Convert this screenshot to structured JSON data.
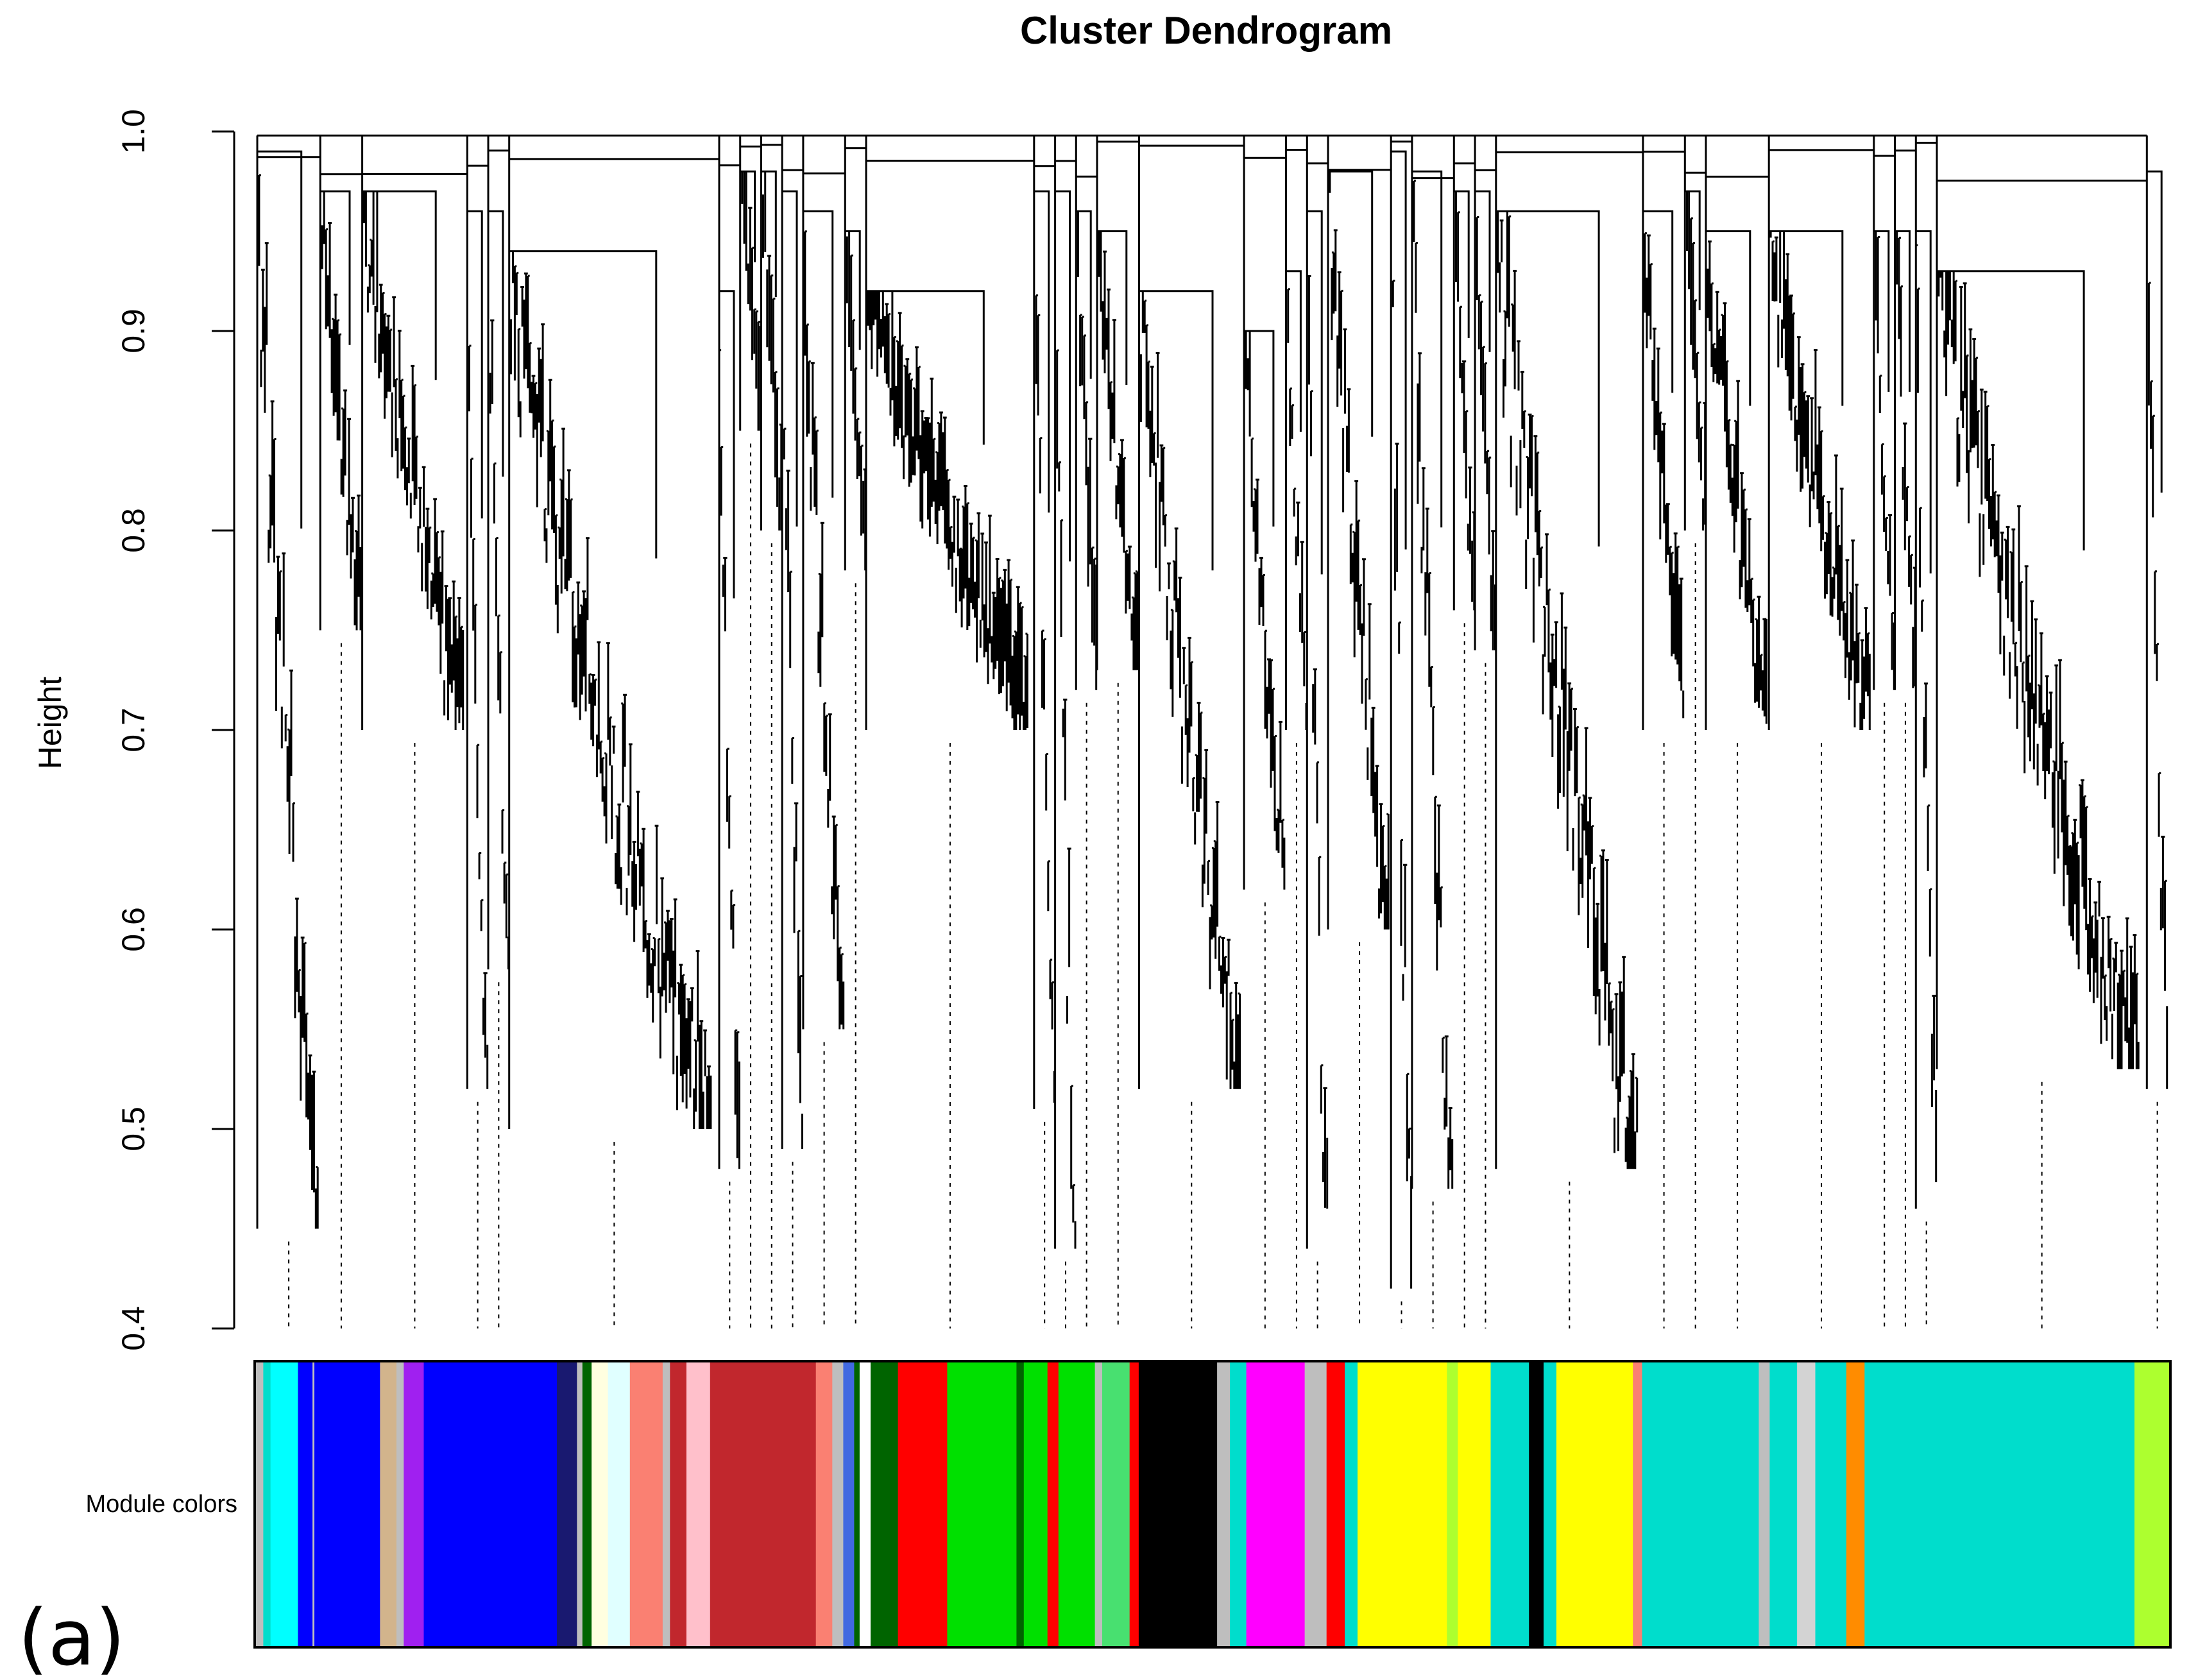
{
  "panel_label": "(a)",
  "chart_data": {
    "type": "dendrogram",
    "title": "Cluster Dendrogram",
    "xlabel": "",
    "ylabel": "Height",
    "ylim": [
      0.4,
      1.0
    ],
    "yticks": [
      "0.4",
      "0.5",
      "0.6",
      "0.7",
      "0.8",
      "0.9",
      "1.0"
    ],
    "grid": false,
    "module_colors_label": "Module colors",
    "branches": [
      {
        "module": "grey",
        "top": 0.99,
        "min_height": 0.45,
        "weight": 3
      },
      {
        "module": "turquoise",
        "top": 0.97,
        "min_height": 0.75,
        "weight": 2
      },
      {
        "module": "blue",
        "top": 0.97,
        "min_height": 0.7,
        "weight": 5
      },
      {
        "module": "tan",
        "top": 0.96,
        "min_height": 0.52,
        "weight": 1
      },
      {
        "module": "purple",
        "top": 0.96,
        "min_height": 0.58,
        "weight": 1
      },
      {
        "module": "blue",
        "top": 0.94,
        "min_height": 0.5,
        "weight": 10
      },
      {
        "module": "midnightblue",
        "top": 0.92,
        "min_height": 0.48,
        "weight": 1
      },
      {
        "module": "lightyellow",
        "top": 0.98,
        "min_height": 0.85,
        "weight": 1
      },
      {
        "module": "lightcyan",
        "top": 0.98,
        "min_height": 0.8,
        "weight": 1
      },
      {
        "module": "salmon",
        "top": 0.97,
        "min_height": 0.49,
        "weight": 1
      },
      {
        "module": "brown",
        "top": 0.96,
        "min_height": 0.55,
        "weight": 2
      },
      {
        "module": "pink",
        "top": 0.95,
        "min_height": 0.78,
        "weight": 1
      },
      {
        "module": "brown",
        "top": 0.92,
        "min_height": 0.7,
        "weight": 8
      },
      {
        "module": "royalblue",
        "top": 0.97,
        "min_height": 0.51,
        "weight": 1
      },
      {
        "module": "white",
        "top": 0.97,
        "min_height": 0.44,
        "weight": 1
      },
      {
        "module": "darkgreen",
        "top": 0.96,
        "min_height": 0.72,
        "weight": 1
      },
      {
        "module": "red",
        "top": 0.95,
        "min_height": 0.73,
        "weight": 2
      },
      {
        "module": "green",
        "top": 0.92,
        "min_height": 0.52,
        "weight": 5
      },
      {
        "module": "green",
        "top": 0.9,
        "min_height": 0.62,
        "weight": 2
      },
      {
        "module": "lightgreen",
        "top": 0.93,
        "min_height": 0.7,
        "weight": 1
      },
      {
        "module": "red",
        "top": 0.96,
        "min_height": 0.44,
        "weight": 1
      },
      {
        "module": "black",
        "top": 0.98,
        "min_height": 0.6,
        "weight": 3
      },
      {
        "module": "greenyellow",
        "top": 0.99,
        "min_height": 0.42,
        "weight": 1
      },
      {
        "module": "magenta",
        "top": 0.98,
        "min_height": 0.47,
        "weight": 2
      },
      {
        "module": "grey",
        "top": 0.97,
        "min_height": 0.76,
        "weight": 1
      },
      {
        "module": "red",
        "top": 0.97,
        "min_height": 0.74,
        "weight": 1
      },
      {
        "module": "yellow",
        "top": 0.96,
        "min_height": 0.48,
        "weight": 7
      },
      {
        "module": "turquoise",
        "top": 0.96,
        "min_height": 0.7,
        "weight": 2
      },
      {
        "module": "black",
        "top": 0.97,
        "min_height": 0.8,
        "weight": 1
      },
      {
        "module": "yellow",
        "top": 0.95,
        "min_height": 0.7,
        "weight": 3
      },
      {
        "module": "turquoise",
        "top": 0.95,
        "min_height": 0.7,
        "weight": 5
      },
      {
        "module": "salmon",
        "top": 0.95,
        "min_height": 0.72,
        "weight": 1
      },
      {
        "module": "lightgrey",
        "top": 0.95,
        "min_height": 0.72,
        "weight": 1
      },
      {
        "module": "darkorange",
        "top": 0.95,
        "min_height": 0.46,
        "weight": 1
      },
      {
        "module": "turquoise",
        "top": 0.93,
        "min_height": 0.53,
        "weight": 10
      },
      {
        "module": "greenyellow",
        "top": 0.98,
        "min_height": 0.52,
        "weight": 1
      }
    ]
  },
  "module_palette": {
    "grey": "#bebebe",
    "turquoise": "#00ddcc",
    "cyan": "#00ffff",
    "blue": "#0000ff",
    "tan": "#d2b48c",
    "purple": "#a020f0",
    "midnightblue": "#191970",
    "lightyellow": "#ffffe0",
    "lightcyan": "#e0ffff",
    "salmon": "#fa8072",
    "brown": "#c1272d",
    "pink": "#ffc0cb",
    "royalblue": "#4169e1",
    "white": "#ffffff",
    "darkgreen": "#006400",
    "red": "#ff0000",
    "green": "#00e000",
    "lightgreen": "#48e070",
    "black": "#000000",
    "greenyellow": "#adff2f",
    "magenta": "#ff00ff",
    "yellow": "#ffff00",
    "lightgrey": "#d3d3d3",
    "darkorange": "#ff8c00"
  },
  "colorbar_segments": [
    [
      "grey",
      8
    ],
    [
      "turquoise",
      8
    ],
    [
      "cyan",
      30
    ],
    [
      "blue",
      16
    ],
    [
      "grey",
      2
    ],
    [
      "blue",
      72
    ],
    [
      "tan",
      18
    ],
    [
      "grey",
      8
    ],
    [
      "purple",
      22
    ],
    [
      "blue",
      146
    ],
    [
      "midnightblue",
      22
    ],
    [
      "grey",
      6
    ],
    [
      "darkgreen",
      10
    ],
    [
      "lightyellow",
      18
    ],
    [
      "lightcyan",
      24
    ],
    [
      "salmon",
      36
    ],
    [
      "grey",
      8
    ],
    [
      "brown",
      18
    ],
    [
      "pink",
      26
    ],
    [
      "brown",
      116
    ],
    [
      "salmon",
      18
    ],
    [
      "grey",
      12
    ],
    [
      "royalblue",
      12
    ],
    [
      "darkgreen",
      6
    ],
    [
      "white",
      12
    ],
    [
      "darkgreen",
      30
    ],
    [
      "red",
      54
    ],
    [
      "green",
      76
    ],
    [
      "darkgreen",
      8
    ],
    [
      "green",
      26
    ],
    [
      "red",
      12
    ],
    [
      "green",
      40
    ],
    [
      "grey",
      8
    ],
    [
      "lightgreen",
      30
    ],
    [
      "red",
      10
    ],
    [
      "black",
      86
    ],
    [
      "grey",
      14
    ],
    [
      "turquoise",
      18
    ],
    [
      "magenta",
      64
    ],
    [
      "grey",
      24
    ],
    [
      "red",
      20
    ],
    [
      "turquoise",
      14
    ],
    [
      "yellow",
      98
    ],
    [
      "greenyellow",
      12
    ],
    [
      "yellow",
      36
    ],
    [
      "turquoise",
      42
    ],
    [
      "black",
      16
    ],
    [
      "turquoise",
      14
    ],
    [
      "yellow",
      84
    ],
    [
      "salmon",
      10
    ],
    [
      "turquoise",
      128
    ],
    [
      "grey",
      12
    ],
    [
      "turquoise",
      30
    ],
    [
      "lightgrey",
      20
    ],
    [
      "turquoise",
      34
    ],
    [
      "darkorange",
      20
    ],
    [
      "turquoise",
      296
    ],
    [
      "greenyellow",
      38
    ]
  ]
}
